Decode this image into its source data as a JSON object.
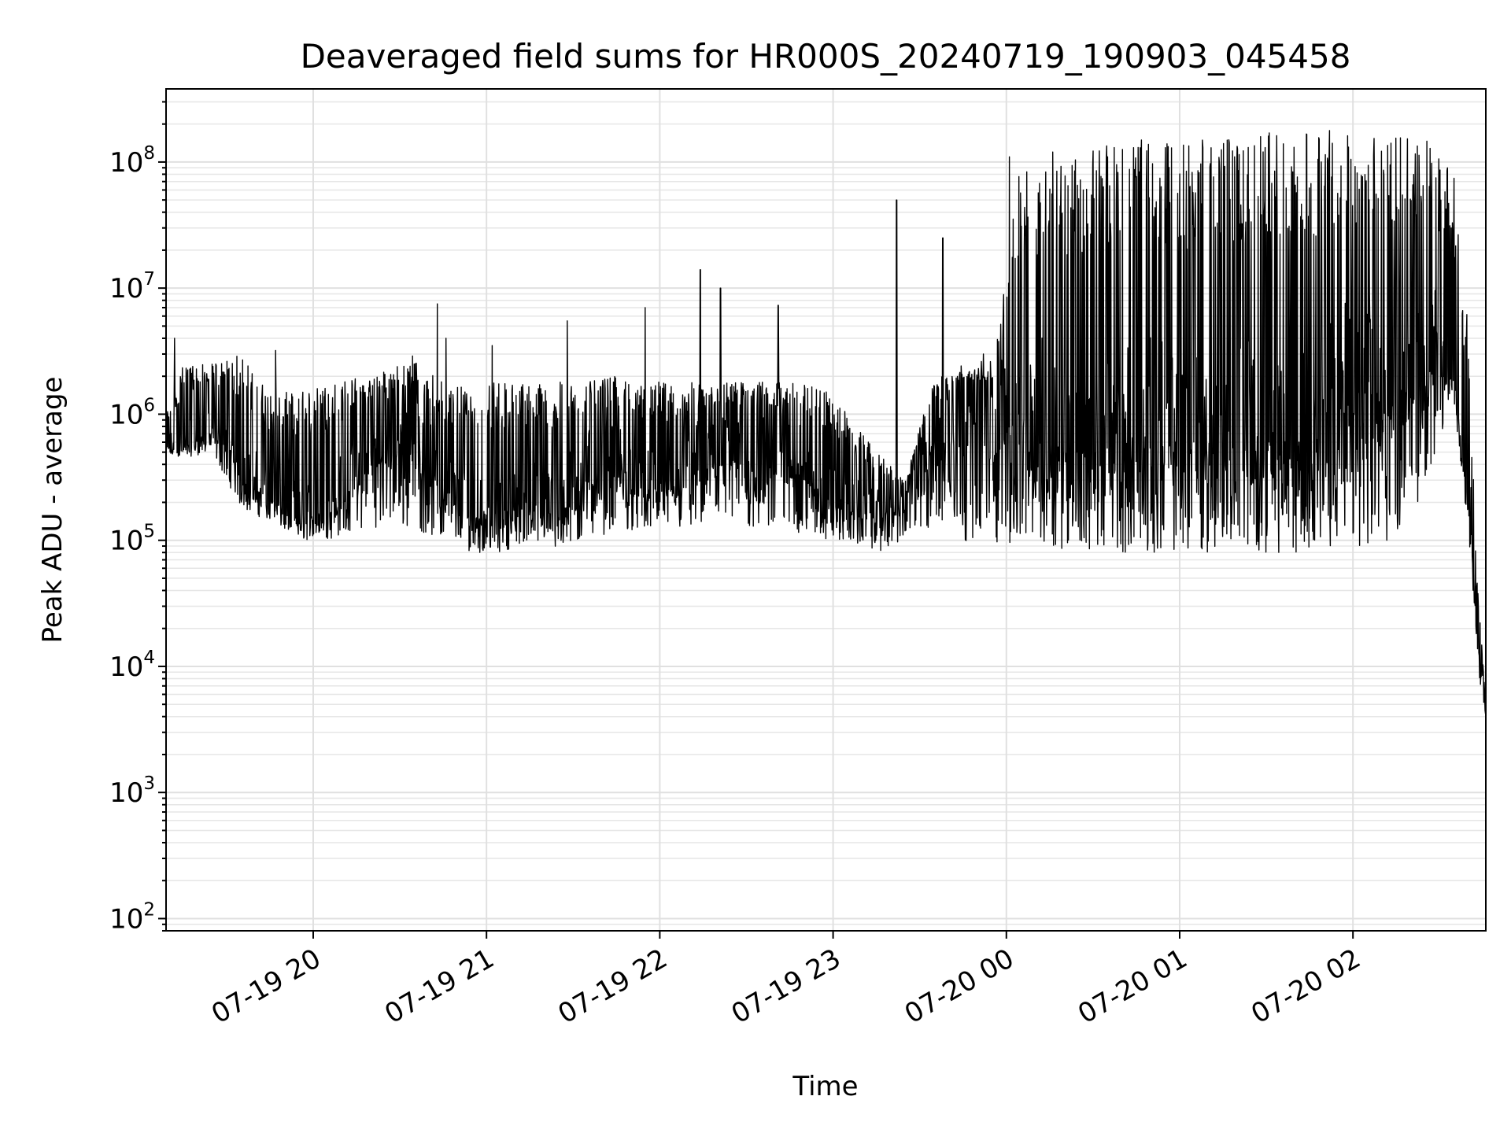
{
  "chart_data": {
    "type": "line",
    "title": "Deaveraged field sums for HR000S_20240719_190903_045458",
    "xlabel": "Time",
    "ylabel": "Peak ADU - average",
    "yscale": "log",
    "ylim": [
      80,
      380000000.0
    ],
    "xlim": [
      "2024-07-19 19:09:03",
      "2024-07-20 02:46:00"
    ],
    "x_ticks": [
      "07-19 20",
      "07-19 21",
      "07-19 22",
      "07-19 23",
      "07-20 00",
      "07-20 01",
      "07-20 02"
    ],
    "y_ticks": [
      {
        "base": "10",
        "exp": "2"
      },
      {
        "base": "10",
        "exp": "3"
      },
      {
        "base": "10",
        "exp": "4"
      },
      {
        "base": "10",
        "exp": "5"
      },
      {
        "base": "10",
        "exp": "6"
      },
      {
        "base": "10",
        "exp": "7"
      },
      {
        "base": "10",
        "exp": "8"
      }
    ],
    "grid": true,
    "line_color": "#000000",
    "series": [
      {
        "values_note_free": true,
        "x": [
          "2024-07-19 19:09",
          "2024-07-19 19:15",
          "2024-07-19 19:25",
          "2024-07-19 19:35",
          "2024-07-19 19:45",
          "2024-07-19 19:55",
          "2024-07-19 20:05",
          "2024-07-19 20:15",
          "2024-07-19 20:25",
          "2024-07-19 20:35",
          "2024-07-19 20:45",
          "2024-07-19 20:55",
          "2024-07-19 21:05",
          "2024-07-19 21:15",
          "2024-07-19 21:25",
          "2024-07-19 21:35",
          "2024-07-19 21:45",
          "2024-07-19 21:55",
          "2024-07-19 22:05",
          "2024-07-19 22:15",
          "2024-07-19 22:25",
          "2024-07-19 22:35",
          "2024-07-19 22:45",
          "2024-07-19 22:55",
          "2024-07-19 23:05",
          "2024-07-19 23:15",
          "2024-07-19 23:25",
          "2024-07-19 23:35",
          "2024-07-19 23:45",
          "2024-07-19 23:55",
          "2024-07-20 00:05",
          "2024-07-20 00:15",
          "2024-07-20 00:25",
          "2024-07-20 00:35",
          "2024-07-20 00:45",
          "2024-07-20 00:55",
          "2024-07-20 01:05",
          "2024-07-20 01:15",
          "2024-07-20 01:25",
          "2024-07-20 01:35",
          "2024-07-20 01:45",
          "2024-07-20 01:55",
          "2024-07-20 02:05",
          "2024-07-20 02:15",
          "2024-07-20 02:25",
          "2024-07-20 02:35",
          "2024-07-20 02:40",
          "2024-07-20 02:43",
          "2024-07-20 02:46"
        ],
        "mid": [
          600000.0,
          600000.0,
          800000.0,
          400000.0,
          250000.0,
          180000.0,
          200000.0,
          400000.0,
          800000.0,
          800000.0,
          300000.0,
          180000.0,
          200000.0,
          250000.0,
          200000.0,
          500000.0,
          500000.0,
          300000.0,
          300000.0,
          600000.0,
          600000.0,
          600000.0,
          600000.0,
          300000.0,
          200000.0,
          200000.0,
          200000.0,
          1000000.0,
          1500000.0,
          1500000.0,
          1000000.0,
          1000000.0,
          1000000.0,
          1000000.0,
          1000000.0,
          1000000.0,
          1000000.0,
          1000000.0,
          1000000.0,
          1000000.0,
          1000000.0,
          2000000.0,
          2000000.0,
          3000000.0,
          4000000.0,
          2000000.0,
          300000.0,
          20000.0,
          4000.0
        ],
        "low": [
          450000.0,
          450000.0,
          500000.0,
          180000.0,
          140000.0,
          100000.0,
          100000.0,
          120000.0,
          130000.0,
          120000.0,
          100000.0,
          80000.0,
          80000.0,
          100000.0,
          80000.0,
          100000.0,
          120000.0,
          120000.0,
          120000.0,
          120000.0,
          120000.0,
          120000.0,
          120000.0,
          100000.0,
          100000.0,
          80000.0,
          100000.0,
          120000.0,
          100000.0,
          90000.0,
          90000.0,
          90000.0,
          80000.0,
          80000.0,
          80000.0,
          80000.0,
          80000.0,
          80000.0,
          80000.0,
          80000.0,
          80000.0,
          90000.0,
          90000.0,
          100000.0,
          250000.0,
          1500000.0,
          100000.0,
          10000.0,
          4000.0
        ],
        "high": [
          1000000.0,
          2500000.0,
          2500000.0,
          3000000.0,
          1500000.0,
          1500000.0,
          1800000.0,
          2000000.0,
          2200000.0,
          3000000.0,
          1800000.0,
          2000000.0,
          1800000.0,
          1800000.0,
          1800000.0,
          1800000.0,
          2000000.0,
          1800000.0,
          1800000.0,
          1800000.0,
          1800000.0,
          1800000.0,
          1800000.0,
          1800000.0,
          1000000.0,
          500000.0,
          300000.0,
          2000000.0,
          2200000.0,
          2000000.0,
          100000000.0,
          120000000.0,
          120000000.0,
          150000000.0,
          150000000.0,
          150000000.0,
          150000000.0,
          150000000.0,
          160000000.0,
          170000000.0,
          180000000.0,
          180000000.0,
          180000000.0,
          170000000.0,
          160000000.0,
          80000000.0,
          5000000.0,
          50000.0,
          5000.0
        ],
        "spikes": [
          {
            "x": "2024-07-19 19:12",
            "y": 4000000.0
          },
          {
            "x": "2024-07-19 19:47",
            "y": 3200000.0
          },
          {
            "x": "2024-07-19 20:43",
            "y": 7500000.0
          },
          {
            "x": "2024-07-19 20:46",
            "y": 4000000.0
          },
          {
            "x": "2024-07-19 21:02",
            "y": 3500000.0
          },
          {
            "x": "2024-07-19 21:28",
            "y": 5500000.0
          },
          {
            "x": "2024-07-19 21:55",
            "y": 7000000.0
          },
          {
            "x": "2024-07-19 22:14",
            "y": 14000000.0
          },
          {
            "x": "2024-07-19 22:21",
            "y": 10000000.0
          },
          {
            "x": "2024-07-19 22:41",
            "y": 7300000.0
          },
          {
            "x": "2024-07-19 23:22",
            "y": 50000000.0
          },
          {
            "x": "2024-07-19 23:38",
            "y": 25000000.0
          },
          {
            "x": "2024-07-19 23:52",
            "y": 3000000.0
          },
          {
            "x": "2024-07-20 00:01",
            "y": 110000000.0
          },
          {
            "x": "2024-07-20 00:16",
            "y": 120000000.0
          },
          {
            "x": "2024-07-20 00:35",
            "y": 110000000.0
          },
          {
            "x": "2024-07-20 00:44",
            "y": 130000000.0
          },
          {
            "x": "2024-07-20 01:08",
            "y": 130000000.0
          },
          {
            "x": "2024-07-20 01:17",
            "y": 150000000.0
          },
          {
            "x": "2024-07-20 01:31",
            "y": 170000000.0
          }
        ]
      }
    ]
  }
}
